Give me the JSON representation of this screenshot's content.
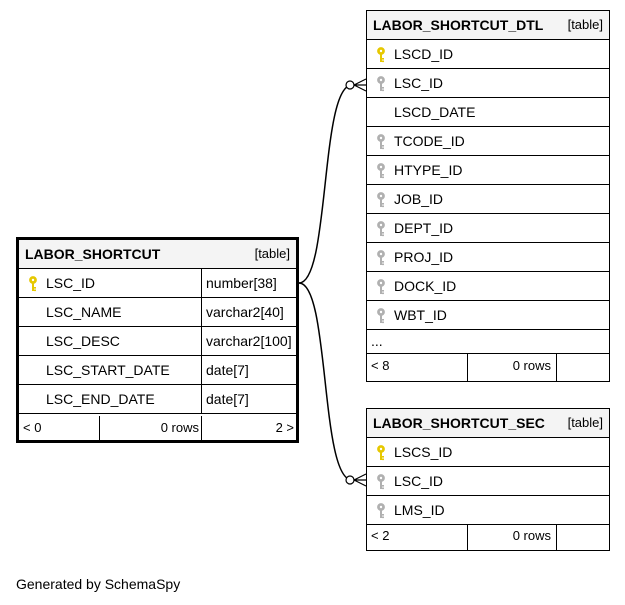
{
  "tables": {
    "labor_shortcut": {
      "name": "LABOR_SHORTCUT",
      "tag": "[table]",
      "columns": [
        {
          "name": "LSC_ID",
          "type": "number[38]",
          "key": "primary"
        },
        {
          "name": "LSC_NAME",
          "type": "varchar2[40]",
          "key": "none"
        },
        {
          "name": "LSC_DESC",
          "type": "varchar2[100]",
          "key": "none"
        },
        {
          "name": "LSC_START_DATE",
          "type": "date[7]",
          "key": "none"
        },
        {
          "name": "LSC_END_DATE",
          "type": "date[7]",
          "key": "none"
        }
      ],
      "footer": {
        "parents": "< 0",
        "rows": "0 rows",
        "children": "2 >"
      }
    },
    "labor_shortcut_dtl": {
      "name": "LABOR_SHORTCUT_DTL",
      "tag": "[table]",
      "columns": [
        {
          "name": "LSCD_ID",
          "key": "primary"
        },
        {
          "name": "LSC_ID",
          "key": "foreign"
        },
        {
          "name": "LSCD_DATE",
          "key": "none"
        },
        {
          "name": "TCODE_ID",
          "key": "foreign"
        },
        {
          "name": "HTYPE_ID",
          "key": "foreign"
        },
        {
          "name": "JOB_ID",
          "key": "foreign"
        },
        {
          "name": "DEPT_ID",
          "key": "foreign"
        },
        {
          "name": "PROJ_ID",
          "key": "foreign"
        },
        {
          "name": "DOCK_ID",
          "key": "foreign"
        },
        {
          "name": "WBT_ID",
          "key": "foreign"
        }
      ],
      "more": "...",
      "footer": {
        "parents": "< 8",
        "rows": "0 rows"
      }
    },
    "labor_shortcut_sec": {
      "name": "LABOR_SHORTCUT_SEC",
      "tag": "[table]",
      "columns": [
        {
          "name": "LSCS_ID",
          "key": "primary"
        },
        {
          "name": "LSC_ID",
          "key": "foreign"
        },
        {
          "name": "LMS_ID",
          "key": "foreign"
        }
      ],
      "footer": {
        "parents": "< 2",
        "rows": "0 rows"
      }
    }
  },
  "colors": {
    "primary_key": "#e6c800",
    "foreign_key": "#b0b0b0",
    "header_bg": "#f4f4f4"
  },
  "generated_by": "Generated by SchemaSpy"
}
